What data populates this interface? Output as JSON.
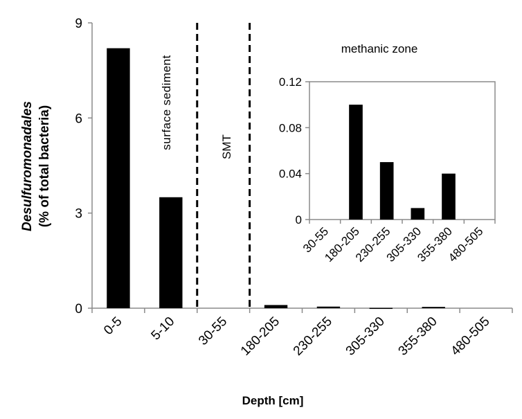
{
  "chart_data": [
    {
      "type": "bar",
      "categories": [
        "0-5",
        "5-10",
        "30-55",
        "180-205",
        "230-255",
        "305-330",
        "355-380",
        "480-505"
      ],
      "values": [
        8.2,
        3.5,
        0,
        0.1,
        0.05,
        0.01,
        0.04,
        0
      ],
      "ylabel": "Desulfuromonadales",
      "ylabel_line2": "(% of total bacteria)",
      "xlabel": "Depth [cm]",
      "ylim": [
        0,
        9
      ],
      "yticks": [
        "0",
        "3",
        "6",
        "9"
      ],
      "annotations": {
        "surface": "surface sediment",
        "smt": "SMT",
        "methanic": "methanic zone"
      },
      "divider_after_categories": [
        "5-10",
        "30-55"
      ],
      "color": "#000000"
    },
    {
      "type": "bar",
      "role": "inset",
      "categories": [
        "30-55",
        "180-205",
        "230-255",
        "305-330",
        "355-380",
        "480-505"
      ],
      "values": [
        0,
        0.1,
        0.05,
        0.01,
        0.04,
        0
      ],
      "ylim": [
        0,
        0.12
      ],
      "yticks": [
        "0",
        "0.04",
        "0.08",
        "0.12"
      ],
      "color": "#000000"
    }
  ]
}
